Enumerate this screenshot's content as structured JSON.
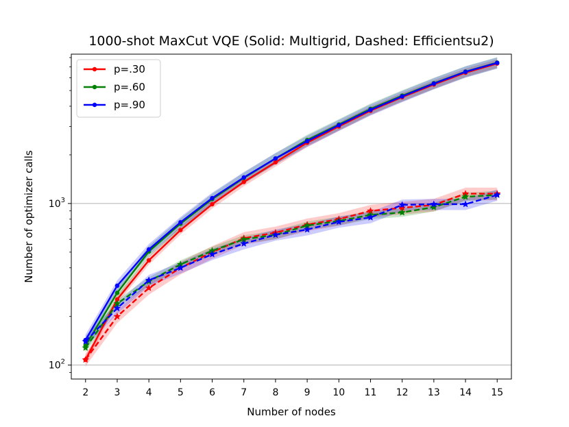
{
  "chart_data": {
    "type": "line",
    "title": "1000-shot MaxCut VQE (Solid: Multigrid, Dashed: Efficientsu2)",
    "xlabel": "Number of nodes",
    "ylabel": "Number of optimizer calls",
    "yscale": "log",
    "xlim": [
      1.55,
      15.45
    ],
    "ylim": [
      82,
      8400
    ],
    "x": [
      2,
      3,
      4,
      5,
      6,
      7,
      8,
      9,
      10,
      11,
      12,
      13,
      14,
      15
    ],
    "x_tick_labels": [
      "2",
      "3",
      "4",
      "5",
      "6",
      "7",
      "8",
      "9",
      "10",
      "11",
      "12",
      "13",
      "14",
      "15"
    ],
    "y_ticks": [
      {
        "value": 100,
        "base": "10",
        "exp": "2"
      },
      {
        "value": 1000,
        "base": "10",
        "exp": "3"
      }
    ],
    "grid": "horizontal at major y ticks",
    "legend_position": "top-left",
    "series": [
      {
        "name": "p=.30",
        "color": "#ff0000",
        "style": "solid",
        "marker": "circle",
        "values": [
          108,
          255,
          445,
          685,
          990,
          1360,
          1800,
          2380,
          3000,
          3750,
          4550,
          5450,
          6450,
          7350
        ],
        "band": 0.06
      },
      {
        "name": "p=.60",
        "color": "#008000",
        "style": "solid",
        "marker": "circle",
        "values": [
          132,
          280,
          505,
          750,
          1065,
          1440,
          1900,
          2470,
          3080,
          3850,
          4650,
          5550,
          6550,
          7450
        ],
        "band": 0.08
      },
      {
        "name": "p=.90",
        "color": "#0000ff",
        "style": "solid",
        "marker": "circle",
        "values": [
          143,
          310,
          520,
          765,
          1080,
          1450,
          1900,
          2430,
          3050,
          3800,
          4600,
          5520,
          6530,
          7420
        ],
        "band": 0.08
      },
      {
        "name": "p=.30",
        "color": "#ff0000",
        "style": "dashed",
        "marker": "star",
        "values": [
          108,
          200,
          300,
          400,
          500,
          610,
          660,
          740,
          800,
          900,
          940,
          980,
          1150,
          1150
        ],
        "band": 0.09
      },
      {
        "name": "p=.60",
        "color": "#008000",
        "style": "dashed",
        "marker": "star",
        "values": [
          128,
          240,
          330,
          420,
          510,
          600,
          640,
          730,
          780,
          850,
          880,
          950,
          1100,
          1130
        ],
        "band": 0.06
      },
      {
        "name": "p=.90",
        "color": "#0000ff",
        "style": "dashed",
        "marker": "star",
        "values": [
          140,
          225,
          335,
          400,
          485,
          565,
          640,
          690,
          770,
          820,
          980,
          990,
          990,
          1130
        ],
        "band": 0.08
      }
    ],
    "legend": [
      {
        "label": "p=.30",
        "color": "#ff0000"
      },
      {
        "label": "p=.60",
        "color": "#008000"
      },
      {
        "label": "p=.90",
        "color": "#0000ff"
      }
    ]
  }
}
